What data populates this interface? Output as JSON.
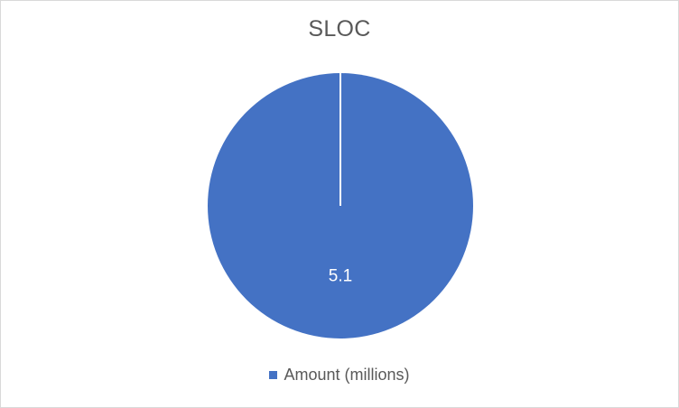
{
  "chart_data": {
    "type": "pie",
    "title": "SLOC",
    "categories": [
      "Amount (millions)"
    ],
    "series": [
      {
        "name": "Amount (millions)",
        "values": [
          5.1
        ]
      }
    ],
    "data_labels": [
      "5.1"
    ],
    "legend_position": "bottom",
    "colors": [
      "#4472c4"
    ]
  }
}
